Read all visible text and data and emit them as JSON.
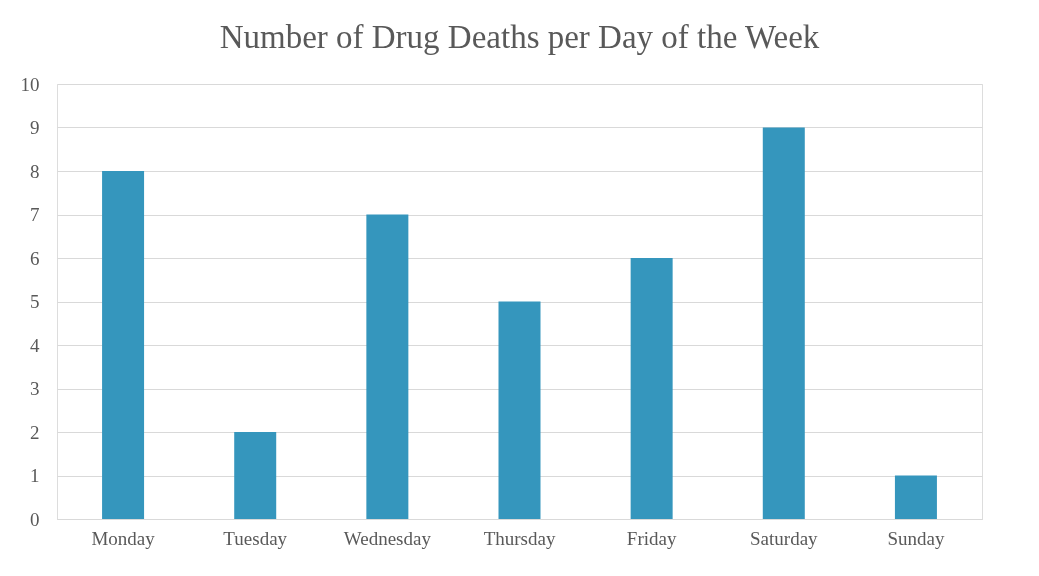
{
  "chart_data": {
    "type": "bar",
    "title": "Number of Drug Deaths per Day of the Week",
    "categories": [
      "Monday",
      "Tuesday",
      "Wednesday",
      "Thursday",
      "Friday",
      "Saturday",
      "Sunday"
    ],
    "values": [
      8,
      2,
      7,
      5,
      6,
      9,
      1
    ],
    "color": "#3596bd",
    "ylim": [
      0,
      10
    ],
    "yticks": [
      0,
      1,
      2,
      3,
      4,
      5,
      6,
      7,
      8,
      9,
      10
    ],
    "grid": "y"
  }
}
